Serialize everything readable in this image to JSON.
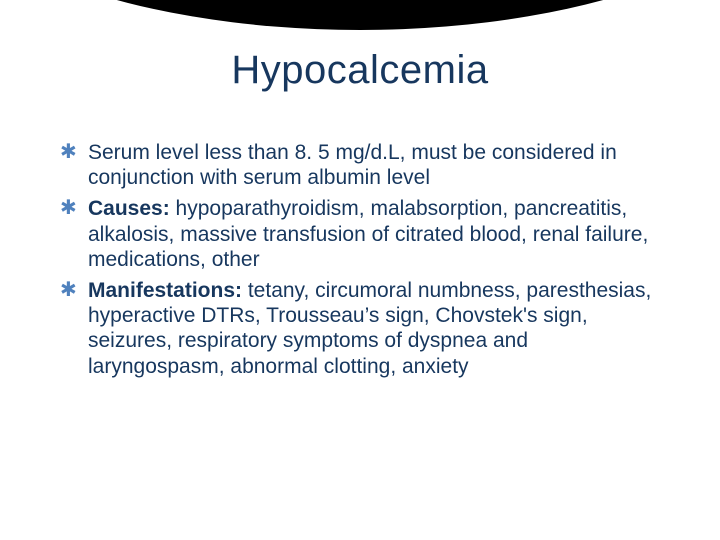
{
  "slide": {
    "title": "Hypocalcemia",
    "title_color": "#17375e",
    "title_fontsize": 40,
    "background_color": "#ffffff",
    "arc_color": "#000000",
    "body_color": "#17375e",
    "body_fontsize": 21,
    "bullet_marker": "✱",
    "bullet_marker_color": "#4f81bd",
    "bullets": [
      {
        "lead": "",
        "text": "Serum level less than 8. 5 mg/d.L, must be considered in conjunction with serum albumin level"
      },
      {
        "lead": "Causes:",
        "text": " hypoparathyroidism, malabsorption, pancreatitis, alkalosis, massive transfusion of citrated blood, renal failure, medications, other"
      },
      {
        "lead": "Manifestations:",
        "text": " tetany, circumoral numbness, paresthesias, hyperactive DTRs, Trousseau’s sign, Chovstek's sign, seizures, respiratory symptoms of dyspnea and laryngospasm, abnormal clotting, anxiety"
      }
    ]
  }
}
